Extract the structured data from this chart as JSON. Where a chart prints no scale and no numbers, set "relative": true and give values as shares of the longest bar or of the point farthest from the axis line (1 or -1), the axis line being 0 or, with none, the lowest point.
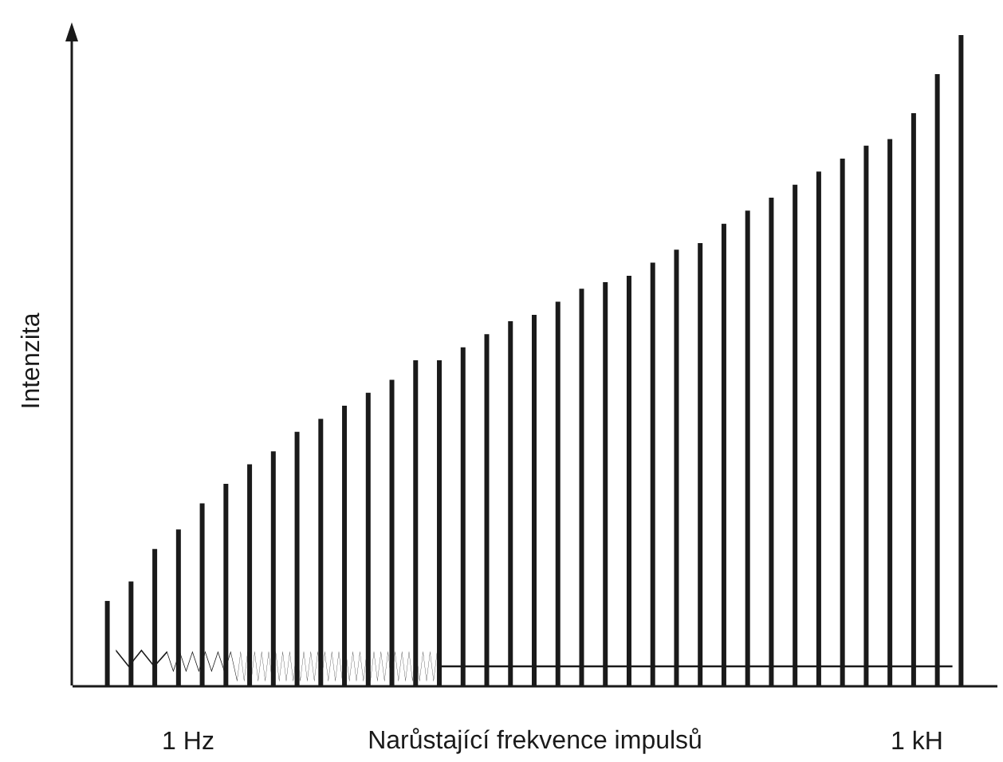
{
  "chart_data": {
    "type": "bar",
    "relative": true,
    "xlabel": "Narůstající frekvence impulsů",
    "ylabel": "Intenzita",
    "annotations": [
      "1 Hz",
      "1 kH"
    ],
    "color": "#1a1a1a",
    "categories": [
      null,
      null,
      null,
      null,
      null,
      null,
      null,
      null,
      null,
      null,
      null,
      null,
      null,
      null,
      null,
      null,
      null,
      null,
      null,
      null,
      null,
      null,
      null,
      null,
      null,
      null,
      null,
      null,
      null,
      null,
      null,
      null,
      null,
      null,
      null,
      null,
      null
    ],
    "values": [
      0.13,
      0.16,
      0.21,
      0.24,
      0.28,
      0.31,
      0.34,
      0.36,
      0.39,
      0.41,
      0.43,
      0.45,
      0.47,
      0.5,
      0.5,
      0.52,
      0.54,
      0.56,
      0.57,
      0.59,
      0.61,
      0.62,
      0.63,
      0.65,
      0.67,
      0.68,
      0.71,
      0.73,
      0.75,
      0.77,
      0.79,
      0.81,
      0.83,
      0.84,
      0.88,
      0.94,
      1
    ]
  }
}
